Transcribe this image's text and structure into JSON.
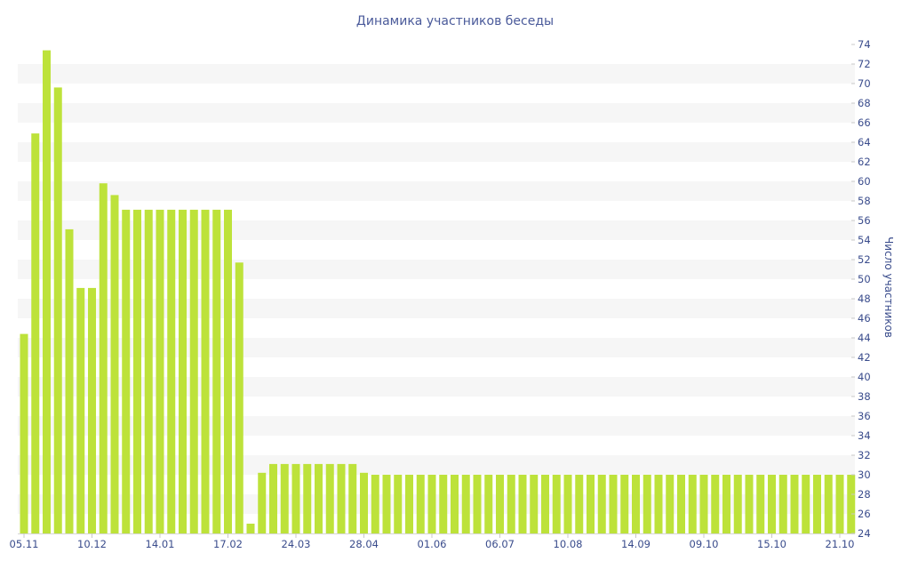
{
  "chart_data": {
    "type": "bar",
    "title": "Динамика участников беседы",
    "ylabel": "Число участников",
    "xlabel": "",
    "ylim": [
      24,
      74
    ],
    "yticks": [
      24,
      26,
      28,
      30,
      32,
      34,
      36,
      38,
      40,
      42,
      44,
      46,
      48,
      50,
      52,
      54,
      56,
      58,
      60,
      62,
      64,
      66,
      68,
      70,
      72,
      74
    ],
    "ytick_labels": [
      "24",
      "26",
      "28",
      "30",
      "32",
      "34",
      "36",
      "38",
      "40",
      "42",
      "44",
      "46",
      "48",
      "50",
      "52",
      "54",
      "56",
      "58",
      "60",
      "62",
      "64",
      "66",
      "68",
      "70",
      "72",
      "74"
    ],
    "y_axis_position": "right",
    "grid": "horizontal alternating bands",
    "bar_color": "#bde23a",
    "band_color": "#f6f6f6",
    "text_color": "#3a4c8c",
    "xtick_labels": [
      "05.11",
      "10.12",
      "14.01",
      "17.02",
      "24.03",
      "28.04",
      "01.06",
      "06.07",
      "10.08",
      "14.09",
      "09.10",
      "15.10",
      "21.10"
    ],
    "xtick_bar_index": [
      0,
      6,
      12,
      18,
      24,
      30,
      36,
      42,
      48,
      54,
      60,
      66,
      72
    ],
    "values": [
      44.4,
      64.9,
      73.4,
      69.6,
      55.1,
      49.1,
      49.1,
      59.8,
      58.6,
      57.1,
      57.1,
      57.1,
      57.1,
      57.1,
      57.1,
      57.1,
      57.1,
      57.1,
      57.1,
      51.7,
      25.0,
      30.2,
      31.1,
      31.1,
      31.1,
      31.1,
      31.1,
      31.1,
      31.1,
      31.1,
      30.2,
      30.0,
      30.0,
      30.0,
      30.0,
      30.0,
      30.0,
      30.0,
      30.0,
      30.0,
      30.0,
      30.0,
      30.0,
      30.0,
      30.0,
      30.0,
      30.0,
      30.0,
      30.0,
      30.0,
      30.0,
      30.0,
      30.0,
      30.0,
      30.0,
      30.0,
      30.0,
      30.0,
      30.0,
      30.0,
      30.0,
      30.0,
      30.0,
      30.0,
      30.0,
      30.0,
      30.0,
      30.0,
      30.0,
      30.0,
      30.0,
      30.0,
      30.0,
      30.0
    ]
  }
}
